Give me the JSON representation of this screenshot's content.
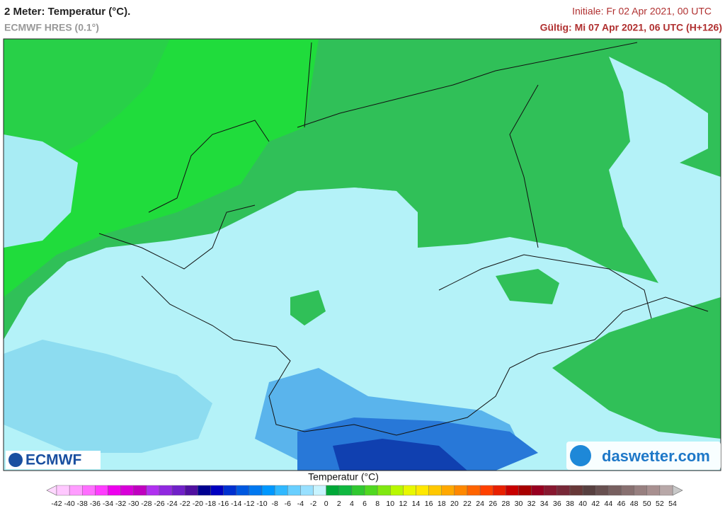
{
  "header": {
    "title": "2 Meter: Temperatur (°C).",
    "subtitle": "ECMWF HRES (0.1°)",
    "init": "Initiale: Fr 02 Apr 2021, 00 UTC",
    "valid": "Gültig: Mi 07 Apr 2021, 06 UTC (H+126)"
  },
  "logos": {
    "left": "ECMWF",
    "right": "daswetter.com"
  },
  "legend": {
    "title": "Temperatur (°C)",
    "ticks": [
      -42,
      -40,
      -38,
      -36,
      -34,
      -32,
      -30,
      -28,
      -26,
      -24,
      -22,
      -20,
      -18,
      -16,
      -14,
      -12,
      -10,
      -8,
      -6,
      -4,
      -2,
      0,
      2,
      4,
      6,
      8,
      10,
      12,
      14,
      16,
      18,
      20,
      22,
      24,
      26,
      28,
      30,
      32,
      34,
      36,
      38,
      40,
      42,
      44,
      46,
      48,
      50,
      52,
      54
    ],
    "colors": [
      "#ffc8ff",
      "#ff9cff",
      "#ff6eff",
      "#ff3cff",
      "#ee00ee",
      "#d800d8",
      "#c000c0",
      "#b030f0",
      "#9028e0",
      "#7020c8",
      "#5010a0",
      "#000090",
      "#0000c0",
      "#0030d0",
      "#0058e0",
      "#0078f0",
      "#0098ff",
      "#30b8ff",
      "#68cfff",
      "#98e0ff",
      "#c8f4ff",
      "#00a838",
      "#10b840",
      "#30c830",
      "#50d820",
      "#80e810",
      "#b8f800",
      "#e8f800",
      "#ffe800",
      "#ffc800",
      "#ffa800",
      "#ff8800",
      "#ff6400",
      "#ff4000",
      "#e82000",
      "#c80000",
      "#a80000",
      "#980020",
      "#881830",
      "#782838",
      "#683838",
      "#584040",
      "#685050",
      "#786060",
      "#887070",
      "#988080",
      "#a89090",
      "#b8a8a8"
    ],
    "low_color": "#ffd8ff",
    "high_color": "#c8c8c8"
  }
}
